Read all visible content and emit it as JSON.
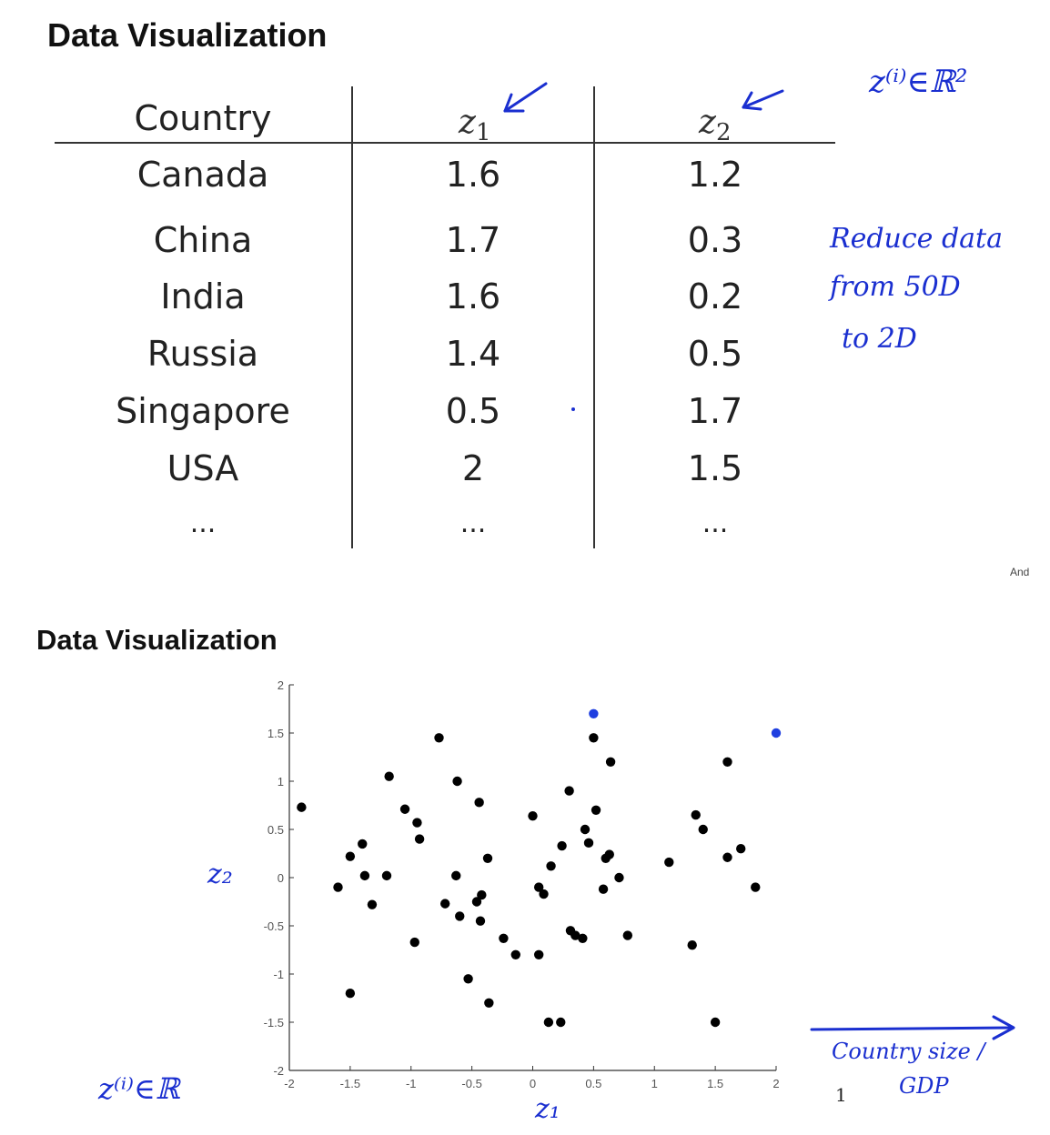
{
  "slide1": {
    "title": "Data Visualization",
    "columns": [
      "Country",
      "z",
      "z"
    ],
    "subscripts": [
      "1",
      "2"
    ],
    "rows": [
      {
        "country": "Canada",
        "z1": "1.6",
        "z2": "1.2"
      },
      {
        "country": "China",
        "z1": "1.7",
        "z2": "0.3"
      },
      {
        "country": "India",
        "z1": "1.6",
        "z2": "0.2"
      },
      {
        "country": "Russia",
        "z1": "1.4",
        "z2": "0.5"
      },
      {
        "country": "Singapore",
        "z1": "0.5",
        "z2": "1.7"
      },
      {
        "country": "USA",
        "z1": "2",
        "z2": "1.5"
      },
      {
        "country": "...",
        "z1": "...",
        "z2": "..."
      }
    ],
    "annotations": {
      "z_in_r2": "z⁽ⁱ⁾∈ℝ²",
      "reduce_line1": "Reduce data",
      "reduce_line2": "from  50D",
      "reduce_line3": "to  2D"
    },
    "corner_text": "And"
  },
  "slide2": {
    "title": "Data Visualization",
    "annotations": {
      "y_label": "z₂",
      "x_label": "z₁",
      "z_in_r": "z⁽ⁱ⁾∈ℝ",
      "arrow_label_1": "Country size /",
      "arrow_label_2": "GDP",
      "page_number": "1"
    }
  },
  "chart_data": {
    "type": "scatter",
    "xlim": [
      -2,
      2
    ],
    "ylim": [
      -2,
      2
    ],
    "x_ticks": [
      "-2",
      "-1.5",
      "-1",
      "-0.5",
      "0",
      "0.5",
      "1",
      "1.5",
      "2"
    ],
    "y_ticks": [
      "2",
      "1.5",
      "1",
      "0.5",
      "0",
      "-0.5",
      "-1",
      "-1.5",
      "-2"
    ],
    "grid": false,
    "highlight_color": "#1f3fe0",
    "point_color": "#000000",
    "highlighted_points": [
      {
        "x": 0.5,
        "y": 1.7
      },
      {
        "x": 2.0,
        "y": 1.5
      }
    ],
    "points": [
      [
        -1.9,
        0.73
      ],
      [
        -1.6,
        -0.1
      ],
      [
        -1.5,
        0.22
      ],
      [
        -1.4,
        0.35
      ],
      [
        -1.38,
        0.02
      ],
      [
        -1.32,
        -0.28
      ],
      [
        -1.5,
        -1.2
      ],
      [
        -1.2,
        0.02
      ],
      [
        -1.18,
        1.05
      ],
      [
        -1.05,
        0.71
      ],
      [
        -0.95,
        0.57
      ],
      [
        -0.93,
        0.4
      ],
      [
        -0.97,
        -0.67
      ],
      [
        -0.77,
        1.45
      ],
      [
        -0.72,
        -0.27
      ],
      [
        -0.62,
        1.0
      ],
      [
        -0.63,
        0.02
      ],
      [
        -0.6,
        -0.4
      ],
      [
        -0.53,
        -1.05
      ],
      [
        -0.46,
        -0.25
      ],
      [
        -0.44,
        0.78
      ],
      [
        -0.42,
        -0.18
      ],
      [
        -0.43,
        -0.45
      ],
      [
        -0.37,
        0.2
      ],
      [
        -0.36,
        -1.3
      ],
      [
        -0.24,
        -0.63
      ],
      [
        -0.14,
        -0.8
      ],
      [
        0.0,
        0.64
      ],
      [
        0.05,
        -0.1
      ],
      [
        0.05,
        -0.8
      ],
      [
        0.09,
        -0.17
      ],
      [
        0.15,
        0.12
      ],
      [
        0.23,
        -1.5
      ],
      [
        0.24,
        0.33
      ],
      [
        0.3,
        0.9
      ],
      [
        0.31,
        -0.55
      ],
      [
        0.35,
        -0.6
      ],
      [
        0.41,
        -0.63
      ],
      [
        0.43,
        0.5
      ],
      [
        0.46,
        0.36
      ],
      [
        0.5,
        1.45
      ],
      [
        0.52,
        0.7
      ],
      [
        0.58,
        -0.12
      ],
      [
        0.6,
        0.2
      ],
      [
        0.63,
        0.24
      ],
      [
        0.64,
        1.2
      ],
      [
        0.71,
        0.0
      ],
      [
        0.78,
        -0.6
      ],
      [
        1.12,
        0.16
      ],
      [
        1.31,
        -0.7
      ],
      [
        1.34,
        0.65
      ],
      [
        1.4,
        0.5
      ],
      [
        1.5,
        -1.5
      ],
      [
        1.6,
        1.2
      ],
      [
        1.6,
        0.21
      ],
      [
        1.71,
        0.3
      ],
      [
        1.83,
        -0.1
      ],
      [
        0.13,
        -1.5
      ]
    ]
  }
}
